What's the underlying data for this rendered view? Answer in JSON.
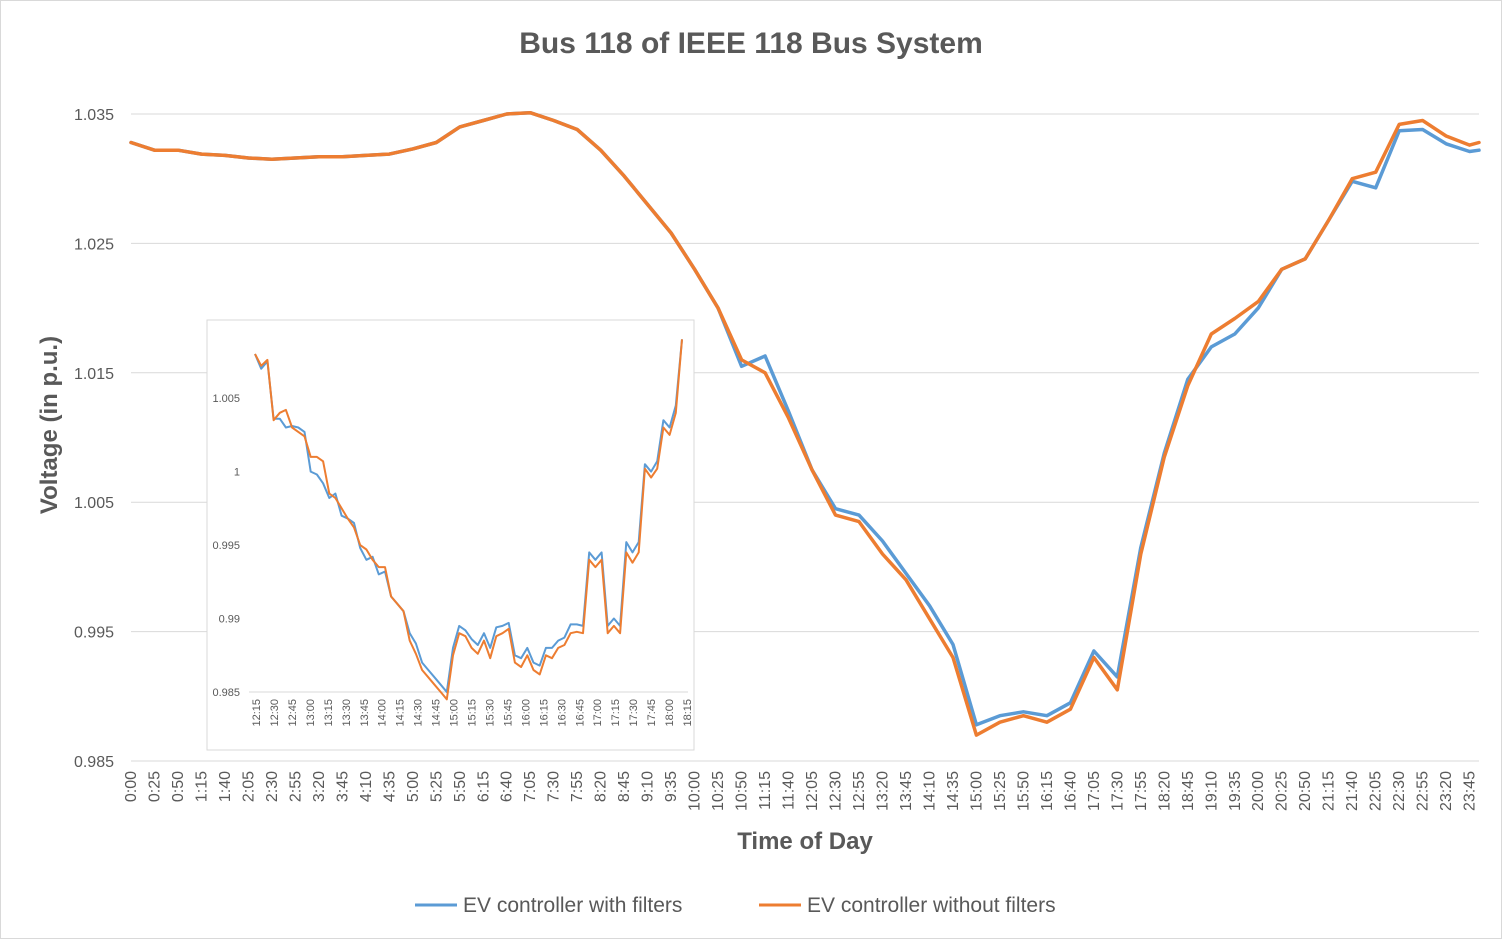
{
  "chart_data": [
    {
      "type": "line",
      "title": "Bus 118 of IEEE 118 Bus System",
      "xlabel": "Time of Day",
      "ylabel": "Voltage (in p.u.)",
      "ylim": [
        0.985,
        1.035
      ],
      "yticks": [
        "1.035",
        "1.025",
        "1.015",
        "1.005",
        "0.995",
        "0.985"
      ],
      "ytick_values": [
        1.035,
        1.025,
        1.015,
        1.005,
        0.995,
        0.985
      ],
      "grid": true,
      "legend_position": "bottom",
      "x_tick_labels": [
        "0:00",
        "0:25",
        "0:50",
        "1:15",
        "1:40",
        "2:05",
        "2:30",
        "2:55",
        "3:20",
        "3:45",
        "4:10",
        "4:35",
        "5:00",
        "5:25",
        "5:50",
        "6:15",
        "6:40",
        "7:05",
        "7:30",
        "7:55",
        "8:20",
        "8:45",
        "9:10",
        "9:35",
        "10:00",
        "10:25",
        "10:50",
        "11:15",
        "11:40",
        "12:05",
        "12:30",
        "12:55",
        "13:20",
        "13:45",
        "14:10",
        "14:35",
        "15:00",
        "15:25",
        "15:50",
        "16:15",
        "16:40",
        "17:05",
        "17:30",
        "17:55",
        "18:20",
        "18:45",
        "19:10",
        "19:35",
        "20:00",
        "20:25",
        "20:50",
        "21:15",
        "21:40",
        "22:05",
        "22:30",
        "22:55",
        "23:20",
        "23:45"
      ],
      "x": [
        "0:00",
        "0:25",
        "0:50",
        "1:15",
        "1:40",
        "2:05",
        "2:30",
        "2:55",
        "3:20",
        "3:45",
        "4:10",
        "4:35",
        "5:00",
        "5:25",
        "5:50",
        "6:15",
        "6:40",
        "7:05",
        "7:30",
        "7:55",
        "8:20",
        "8:45",
        "9:10",
        "9:35",
        "10:00",
        "10:25",
        "10:50",
        "11:15",
        "11:40",
        "12:05",
        "12:30",
        "12:55",
        "13:20",
        "13:45",
        "14:10",
        "14:35",
        "15:00",
        "15:25",
        "15:50",
        "16:15",
        "16:40",
        "17:05",
        "17:30",
        "17:55",
        "18:20",
        "18:45",
        "19:10",
        "19:35",
        "20:00",
        "20:25",
        "20:50",
        "21:15",
        "21:40",
        "22:05",
        "22:30",
        "22:55",
        "23:20",
        "23:45",
        "23:55"
      ],
      "series": [
        {
          "name": "EV controller with filters",
          "color": "#5b9bd5",
          "values": [
            1.0328,
            1.0322,
            1.0322,
            1.0319,
            1.0318,
            1.0316,
            1.0315,
            1.0316,
            1.0317,
            1.0317,
            1.0318,
            1.0319,
            1.0323,
            1.0328,
            1.034,
            1.0345,
            1.035,
            1.0351,
            1.0345,
            1.0338,
            1.0322,
            1.0302,
            1.028,
            1.0258,
            1.023,
            1.02,
            1.0155,
            1.0163,
            1.012,
            1.0075,
            1.0045,
            1.004,
            1.002,
            0.9995,
            0.997,
            0.994,
            0.9878,
            0.9885,
            0.9888,
            0.9885,
            0.9895,
            0.9935,
            0.9915,
            1.0015,
            1.0088,
            1.0145,
            1.017,
            1.018,
            1.02,
            1.023,
            1.0238,
            1.0268,
            1.0298,
            1.0293,
            1.0337,
            1.0338,
            1.0327,
            1.0321,
            1.0322
          ]
        },
        {
          "name": "EV controller without filters",
          "color": "#ed7d31",
          "values": [
            1.0328,
            1.0322,
            1.0322,
            1.0319,
            1.0318,
            1.0316,
            1.0315,
            1.0316,
            1.0317,
            1.0317,
            1.0318,
            1.0319,
            1.0323,
            1.0328,
            1.034,
            1.0345,
            1.035,
            1.0351,
            1.0345,
            1.0338,
            1.0322,
            1.0302,
            1.028,
            1.0258,
            1.023,
            1.02,
            1.016,
            1.015,
            1.0115,
            1.0075,
            1.004,
            1.0035,
            1.001,
            0.999,
            0.996,
            0.993,
            0.987,
            0.988,
            0.9885,
            0.988,
            0.989,
            0.993,
            0.9905,
            1.001,
            1.0085,
            1.014,
            1.018,
            1.0192,
            1.0205,
            1.023,
            1.0238,
            1.0268,
            1.03,
            1.0305,
            1.0342,
            1.0345,
            1.0333,
            1.0326,
            1.0328
          ]
        }
      ]
    },
    {
      "type": "line",
      "title": "",
      "ylim": [
        0.985,
        1.0095
      ],
      "yticks": [
        "1.005",
        "1",
        "0.995",
        "0.99",
        "0.985"
      ],
      "ytick_values": [
        1.005,
        1.0,
        0.995,
        0.99,
        0.985
      ],
      "grid": false,
      "legend_position": "none",
      "x_tick_labels": [
        "12:15",
        "12:30",
        "12:45",
        "13:00",
        "13:15",
        "13:30",
        "13:45",
        "14:00",
        "14:15",
        "14:30",
        "14:45",
        "15:00",
        "15:15",
        "15:30",
        "15:45",
        "16:00",
        "16:15",
        "16:30",
        "16:45",
        "17:00",
        "17:15",
        "17:30",
        "17:45",
        "18:00",
        "18:15"
      ],
      "series": [
        {
          "name": "EV controller with filters",
          "color": "#5b9bd5",
          "values": [
            1.008,
            1.007,
            1.0075,
            1.0036,
            1.0036,
            1.003,
            1.0031,
            1.003,
            1.0027,
            1.0,
            0.9998,
            0.9992,
            0.9982,
            0.9985,
            0.997,
            0.9968,
            0.9965,
            0.9948,
            0.994,
            0.9942,
            0.993,
            0.9932,
            0.9915,
            0.991,
            0.9905,
            0.989,
            0.9883,
            0.987,
            0.9865,
            0.986,
            0.9855,
            0.985,
            0.988,
            0.9895,
            0.9892,
            0.9886,
            0.9882,
            0.989,
            0.988,
            0.9894,
            0.9895,
            0.9897,
            0.9875,
            0.9873,
            0.988,
            0.987,
            0.9868,
            0.988,
            0.988,
            0.9885,
            0.9887,
            0.9896,
            0.9896,
            0.9895,
            0.9945,
            0.994,
            0.9945,
            0.9895,
            0.99,
            0.9895,
            0.9952,
            0.9945,
            0.9952,
            1.0005,
            1.0,
            1.0007,
            1.0035,
            1.003,
            1.0045,
            1.009
          ]
        },
        {
          "name": "EV controller without filters",
          "color": "#ed7d31",
          "values": [
            1.008,
            1.0072,
            1.0076,
            1.0035,
            1.004,
            1.0042,
            1.003,
            1.0027,
            1.0024,
            1.001,
            1.001,
            1.0007,
            0.9985,
            0.9982,
            0.9975,
            0.9968,
            0.9962,
            0.995,
            0.9947,
            0.994,
            0.9935,
            0.9935,
            0.9915,
            0.991,
            0.9905,
            0.9885,
            0.9876,
            0.9865,
            0.986,
            0.9855,
            0.985,
            0.9845,
            0.9875,
            0.989,
            0.9888,
            0.988,
            0.9876,
            0.9885,
            0.9873,
            0.9888,
            0.989,
            0.9893,
            0.987,
            0.9867,
            0.9875,
            0.9865,
            0.9862,
            0.9875,
            0.9873,
            0.988,
            0.9882,
            0.989,
            0.9891,
            0.989,
            0.994,
            0.9935,
            0.994,
            0.989,
            0.9895,
            0.989,
            0.9945,
            0.9938,
            0.9945,
            1.0002,
            0.9996,
            1.0002,
            1.003,
            1.0025,
            1.004,
            1.009
          ]
        }
      ]
    }
  ]
}
